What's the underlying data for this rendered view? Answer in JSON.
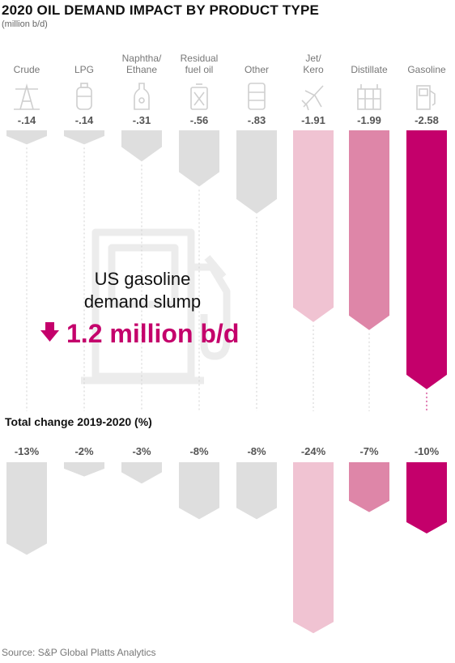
{
  "header": {
    "title": "2020 OIL DEMAND IMPACT BY PRODUCT TYPE",
    "unit": "(million b/d)"
  },
  "section2": {
    "title": "Total change 2019-2020 (%)"
  },
  "callout": {
    "line1": "US gasoline",
    "line2": "demand slump",
    "value": "1.2 million b/d",
    "icon": "down-arrow-icon",
    "background_icon": "fuel-pump-icon"
  },
  "source": "Source: S&P Global Platts Analytics",
  "colors": {
    "gray": "#dedede",
    "jet_kero": "#f0c3d2",
    "distillate": "#de86a8",
    "gasoline": "#c4006b",
    "label": "#777777"
  },
  "chart_data": [
    {
      "type": "bar",
      "title": "2020 OIL DEMAND IMPACT BY PRODUCT TYPE",
      "ylabel": "(million b/d)",
      "orientation": "downward",
      "categories": [
        [
          "Crude"
        ],
        [
          "LPG"
        ],
        [
          "Naphtha/",
          "Ethane"
        ],
        [
          "Residual",
          "fuel oil"
        ],
        [
          "Other"
        ],
        [
          "Jet/",
          "Kero"
        ],
        [
          "Distillate"
        ],
        [
          "Gasoline"
        ]
      ],
      "icons": [
        "oil-derrick-icon",
        "gas-cylinder-icon",
        "naphtha-bottle-icon",
        "jerrycan-icon",
        "barrels-icon",
        "airplane-icon",
        "refinery-icon",
        "fuel-pump-icon"
      ],
      "values": [
        -0.14,
        -0.14,
        -0.31,
        -0.56,
        -0.83,
        -1.91,
        -1.99,
        -2.58
      ],
      "value_labels": [
        "-.14",
        "-.14",
        "-.31",
        "-.56",
        "-.83",
        "-1.91",
        "-1.99",
        "-2.58"
      ],
      "bar_colors": [
        "#dedede",
        "#dedede",
        "#dedede",
        "#dedede",
        "#dedede",
        "#f0c3d2",
        "#de86a8",
        "#c4006b"
      ]
    },
    {
      "type": "bar",
      "title": "Total change 2019-2020 (%)",
      "orientation": "downward",
      "categories": [
        "Crude",
        "LPG",
        "Naphtha/Ethane",
        "Residual fuel oil",
        "Other",
        "Jet/Kero",
        "Distillate",
        "Gasoline"
      ],
      "values": [
        -13,
        -2,
        -3,
        -8,
        -8,
        -24,
        -7,
        -10
      ],
      "value_labels": [
        "-13%",
        "-2%",
        "-3%",
        "-8%",
        "-8%",
        "-24%",
        "-7%",
        "-10%"
      ],
      "bar_colors": [
        "#dedede",
        "#dedede",
        "#dedede",
        "#dedede",
        "#dedede",
        "#f0c3d2",
        "#de86a8",
        "#c4006b"
      ]
    }
  ]
}
